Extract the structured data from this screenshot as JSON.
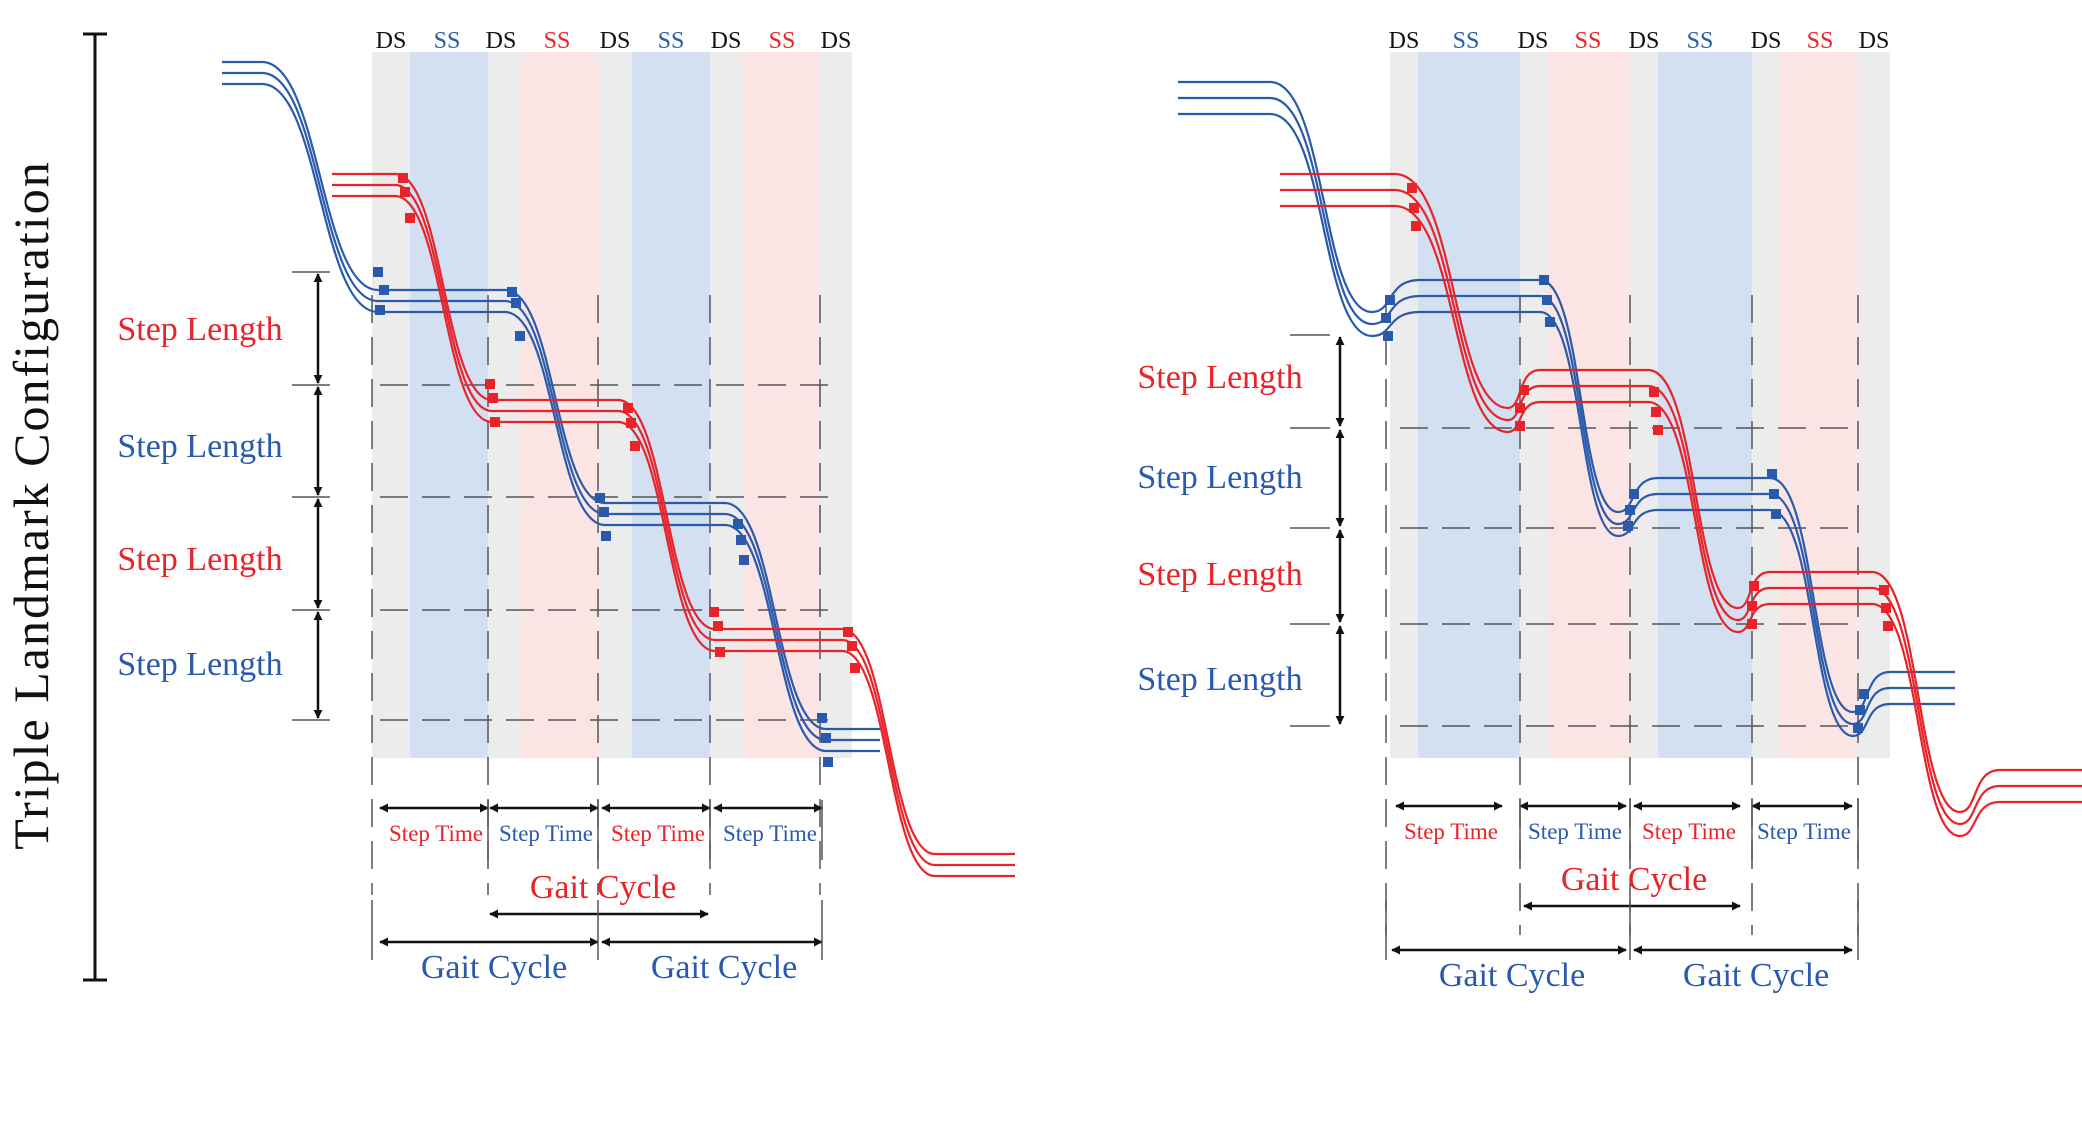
{
  "side_label": "Triple Landmark Configuration",
  "colors": {
    "red": "#e8232a",
    "blue": "#2a5aac",
    "black": "#111111",
    "ds_band": "#ececec",
    "ss_blue_band": "#d3e0f1",
    "ss_red_band": "#fae4e4",
    "guide": "#555555"
  },
  "panels": [
    {
      "id": "left",
      "phases": [
        {
          "label": "DS",
          "color": "black"
        },
        {
          "label": "SS",
          "color": "blue"
        },
        {
          "label": "DS",
          "color": "black"
        },
        {
          "label": "SS",
          "color": "red"
        },
        {
          "label": "DS",
          "color": "black"
        },
        {
          "label": "SS",
          "color": "blue"
        },
        {
          "label": "DS",
          "color": "black"
        },
        {
          "label": "SS",
          "color": "red"
        },
        {
          "label": "DS",
          "color": "black"
        }
      ],
      "step_lengths": [
        {
          "label": "Step Length",
          "color": "red"
        },
        {
          "label": "Step Length",
          "color": "blue"
        },
        {
          "label": "Step Length",
          "color": "red"
        },
        {
          "label": "Step Length",
          "color": "blue"
        }
      ],
      "step_times": [
        {
          "label": "Step Time",
          "color": "red"
        },
        {
          "label": "Step Time",
          "color": "blue"
        },
        {
          "label": "Step Time",
          "color": "red"
        },
        {
          "label": "Step Time",
          "color": "blue"
        }
      ],
      "gait_cycles": [
        {
          "label": "Gait Cycle",
          "color": "red"
        },
        {
          "label": "Gait Cycle",
          "color": "blue"
        },
        {
          "label": "Gait Cycle",
          "color": "blue"
        }
      ]
    },
    {
      "id": "right",
      "phases": [
        {
          "label": "DS",
          "color": "black"
        },
        {
          "label": "SS",
          "color": "blue"
        },
        {
          "label": "DS",
          "color": "black"
        },
        {
          "label": "SS",
          "color": "red"
        },
        {
          "label": "DS",
          "color": "black"
        },
        {
          "label": "SS",
          "color": "blue"
        },
        {
          "label": "DS",
          "color": "black"
        },
        {
          "label": "SS",
          "color": "red"
        },
        {
          "label": "DS",
          "color": "black"
        }
      ],
      "step_lengths": [
        {
          "label": "Step Length",
          "color": "red"
        },
        {
          "label": "Step Length",
          "color": "blue"
        },
        {
          "label": "Step Length",
          "color": "red"
        },
        {
          "label": "Step Length",
          "color": "blue"
        }
      ],
      "step_times": [
        {
          "label": "Step Time",
          "color": "red"
        },
        {
          "label": "Step Time",
          "color": "blue"
        },
        {
          "label": "Step Time",
          "color": "red"
        },
        {
          "label": "Step Time",
          "color": "blue"
        }
      ],
      "gait_cycles": [
        {
          "label": "Gait Cycle",
          "color": "red"
        },
        {
          "label": "Gait Cycle",
          "color": "blue"
        },
        {
          "label": "Gait Cycle",
          "color": "blue"
        }
      ]
    }
  ]
}
